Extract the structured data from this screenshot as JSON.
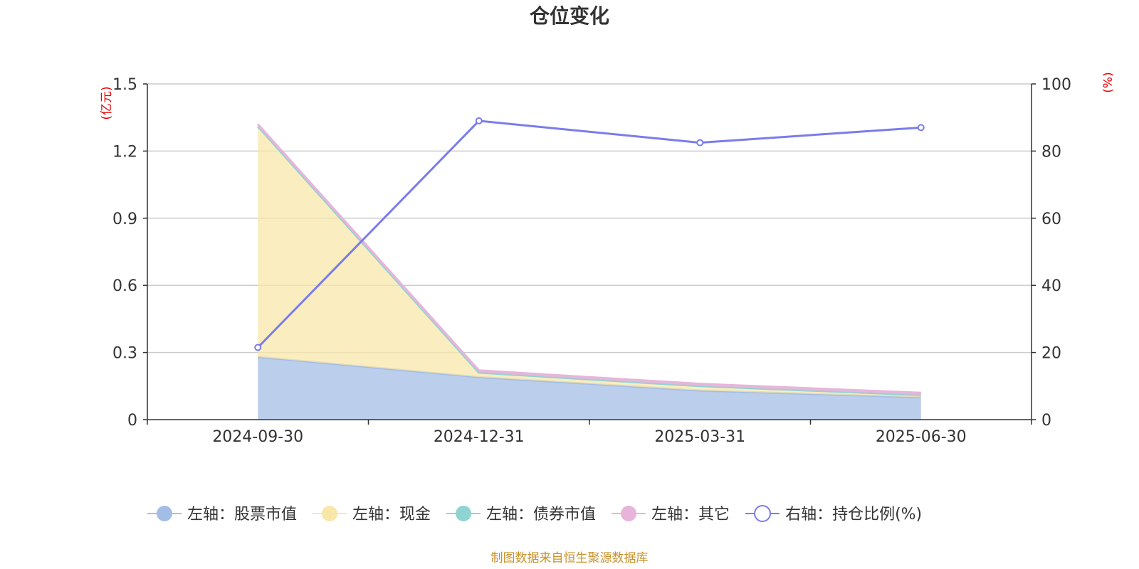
{
  "chart_data": {
    "type": "area",
    "title": "仓位变化",
    "categories": [
      "2024-09-30",
      "2024-12-31",
      "2025-03-31",
      "2025-06-30"
    ],
    "left_axis": {
      "unit": "(亿元)",
      "ylim": [
        0,
        1.5
      ],
      "ticks": [
        "0",
        "0.3",
        "0.6",
        "0.9",
        "1.2",
        "1.5"
      ]
    },
    "right_axis": {
      "unit": "(%)",
      "ylim": [
        0,
        100
      ],
      "ticks": [
        "0",
        "20",
        "40",
        "60",
        "80",
        "100"
      ]
    },
    "stacked_series": [
      {
        "name": "左轴：股票市值",
        "values": [
          0.28,
          0.19,
          0.13,
          0.1
        ],
        "color": "#a4bde6"
      },
      {
        "name": "左轴：现金",
        "values": [
          1.03,
          0.02,
          0.02,
          0.01
        ],
        "color": "#f8e7a9"
      },
      {
        "name": "左轴：债券市值",
        "values": [
          0.0,
          0.0,
          0.0,
          0.0
        ],
        "color": "#8fd3d3"
      },
      {
        "name": "左轴：其它",
        "values": [
          0.01,
          0.01,
          0.01,
          0.01
        ],
        "color": "#e8b4da"
      }
    ],
    "line_series": {
      "name": "右轴：持仓比例(%)",
      "values": [
        21.5,
        89.0,
        82.5,
        87.0
      ],
      "color": "#7a7cec"
    },
    "grid": true,
    "legend_position": "bottom",
    "axis_label_color": "#e60000"
  },
  "source_text": "制图数据来自恒生聚源数据库",
  "source_color": "#c8922a"
}
